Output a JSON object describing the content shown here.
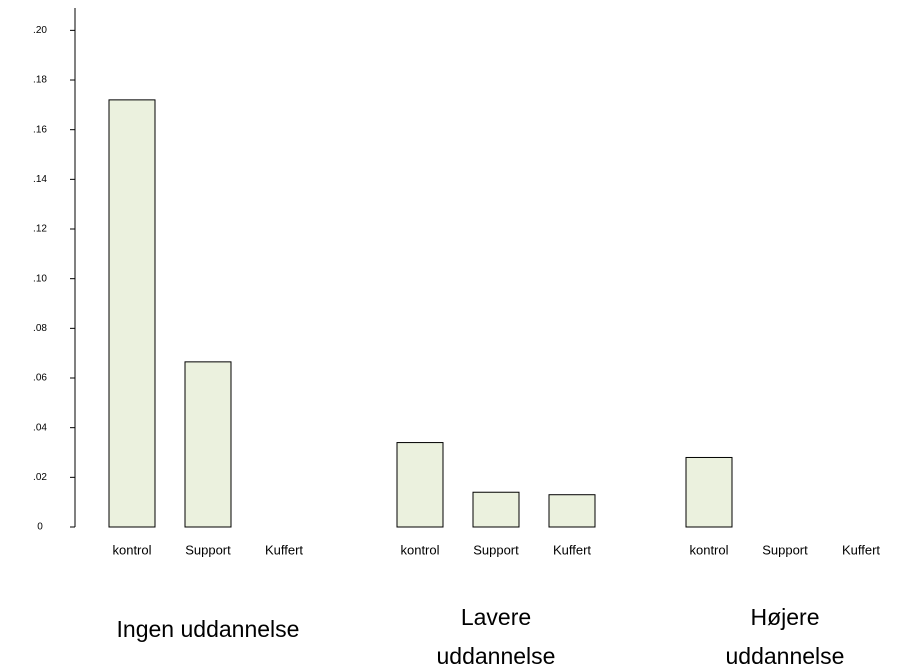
{
  "chart_data": {
    "type": "bar",
    "categories": [
      "Ingen uddannelse",
      "Lavere uddannelse",
      "Højere uddannelse"
    ],
    "series": [
      {
        "name": "kontrol",
        "color": "#ebf1de",
        "values": [
          0.172,
          0.034,
          0.028
        ]
      },
      {
        "name": "Support",
        "color": "#ebf1de",
        "values": [
          0.0665,
          0.014,
          0
        ]
      },
      {
        "name": "Kuffert",
        "color": "#ebf1de",
        "values": [
          0,
          0.013,
          0
        ]
      }
    ],
    "ylim": [
      0,
      0.209
    ],
    "yticks": [
      0,
      {
        "value": 0.02,
        "label": ".02"
      },
      {
        "value": 0.04,
        "label": ".04"
      },
      {
        "value": 0.06,
        "label": ".06"
      },
      {
        "value": 0.08,
        "label": ".08"
      },
      {
        "value": 0.1,
        "label": ".10"
      },
      {
        "value": 0.12,
        "label": ".12"
      },
      {
        "value": 0.14,
        "label": ".14"
      },
      {
        "value": 0.16,
        "label": ".16"
      },
      {
        "value": 0.18,
        "label": ".18"
      },
      {
        "value": 0.2,
        "label": ".20"
      }
    ]
  }
}
